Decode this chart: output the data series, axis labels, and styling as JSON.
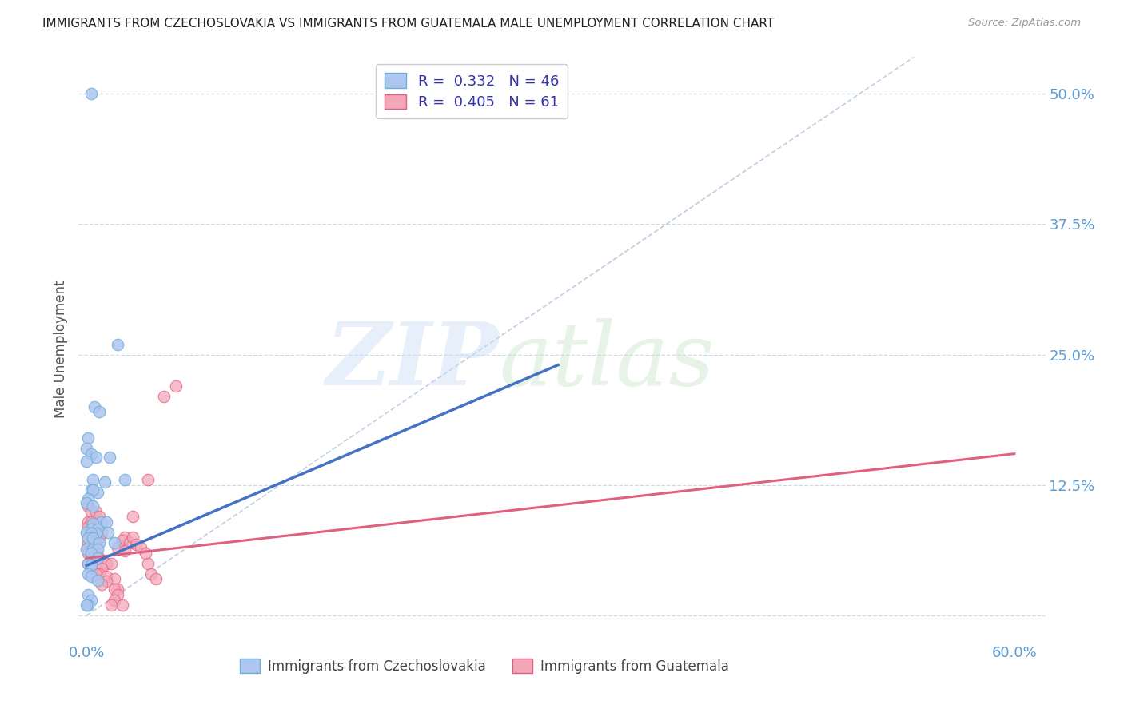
{
  "title": "IMMIGRANTS FROM CZECHOSLOVAKIA VS IMMIGRANTS FROM GUATEMALA MALE UNEMPLOYMENT CORRELATION CHART",
  "source": "Source: ZipAtlas.com",
  "ylabel": "Male Unemployment",
  "y_ticks": [
    0.0,
    0.125,
    0.25,
    0.375,
    0.5
  ],
  "y_tick_labels": [
    "",
    "12.5%",
    "25.0%",
    "37.5%",
    "50.0%"
  ],
  "xlim": [
    -0.005,
    0.62
  ],
  "ylim": [
    -0.025,
    0.535
  ],
  "color_czech": "#aec6f0",
  "color_czech_edge": "#6baed6",
  "color_guate": "#f4a7b9",
  "color_guate_edge": "#e06080",
  "color_czech_line": "#4472c4",
  "color_guate_line": "#e06080",
  "color_diag": "#b0c4d8",
  "background_color": "#ffffff",
  "grid_color": "#d0d8e0",
  "czech_scatter_x": [
    0.02,
    0.003,
    0.005,
    0.008,
    0.001,
    0.0,
    0.003,
    0.006,
    0.015,
    0.0,
    0.004,
    0.012,
    0.003,
    0.007,
    0.004,
    0.001,
    0.0,
    0.004,
    0.01,
    0.004,
    0.013,
    0.003,
    0.007,
    0.025,
    0.0,
    0.006,
    0.014,
    0.003,
    0.001,
    0.004,
    0.008,
    0.018,
    0.0,
    0.004,
    0.007,
    0.003,
    0.007,
    0.001,
    0.003,
    0.001,
    0.003,
    0.007,
    0.001,
    0.003,
    0.001,
    0.0
  ],
  "czech_scatter_y": [
    0.26,
    0.5,
    0.2,
    0.195,
    0.17,
    0.16,
    0.155,
    0.152,
    0.152,
    0.148,
    0.13,
    0.128,
    0.12,
    0.118,
    0.12,
    0.112,
    0.108,
    0.105,
    0.09,
    0.088,
    0.09,
    0.083,
    0.083,
    0.13,
    0.08,
    0.079,
    0.08,
    0.079,
    0.074,
    0.074,
    0.07,
    0.07,
    0.064,
    0.064,
    0.064,
    0.06,
    0.055,
    0.05,
    0.048,
    0.04,
    0.038,
    0.034,
    0.02,
    0.015,
    0.01,
    0.01
  ],
  "guate_scatter_x": [
    0.001,
    0.003,
    0.006,
    0.008,
    0.001,
    0.003,
    0.006,
    0.003,
    0.001,
    0.003,
    0.01,
    0.003,
    0.006,
    0.008,
    0.003,
    0.001,
    0.006,
    0.003,
    0.001,
    0.003,
    0.006,
    0.001,
    0.003,
    0.008,
    0.006,
    0.003,
    0.001,
    0.006,
    0.003,
    0.013,
    0.016,
    0.01,
    0.003,
    0.008,
    0.006,
    0.013,
    0.018,
    0.013,
    0.01,
    0.02,
    0.018,
    0.02,
    0.018,
    0.016,
    0.023,
    0.025,
    0.023,
    0.028,
    0.02,
    0.025,
    0.03,
    0.032,
    0.035,
    0.038,
    0.04,
    0.042,
    0.045,
    0.05,
    0.058,
    0.03,
    0.04
  ],
  "guate_scatter_y": [
    0.105,
    0.1,
    0.1,
    0.095,
    0.09,
    0.09,
    0.085,
    0.085,
    0.085,
    0.08,
    0.08,
    0.08,
    0.078,
    0.075,
    0.075,
    0.07,
    0.07,
    0.065,
    0.065,
    0.063,
    0.06,
    0.06,
    0.055,
    0.055,
    0.053,
    0.05,
    0.05,
    0.05,
    0.048,
    0.05,
    0.05,
    0.045,
    0.045,
    0.04,
    0.04,
    0.038,
    0.035,
    0.033,
    0.03,
    0.025,
    0.025,
    0.02,
    0.015,
    0.01,
    0.01,
    0.075,
    0.072,
    0.07,
    0.065,
    0.062,
    0.075,
    0.068,
    0.065,
    0.06,
    0.05,
    0.04,
    0.035,
    0.21,
    0.22,
    0.095,
    0.13
  ],
  "czech_line_x": [
    0.0,
    0.305
  ],
  "czech_line_y": [
    0.048,
    0.24
  ],
  "guate_line_x": [
    0.0,
    0.6
  ],
  "guate_line_y": [
    0.055,
    0.155
  ],
  "diag_line_x": [
    0.0,
    0.535
  ],
  "diag_line_y": [
    0.0,
    0.535
  ]
}
